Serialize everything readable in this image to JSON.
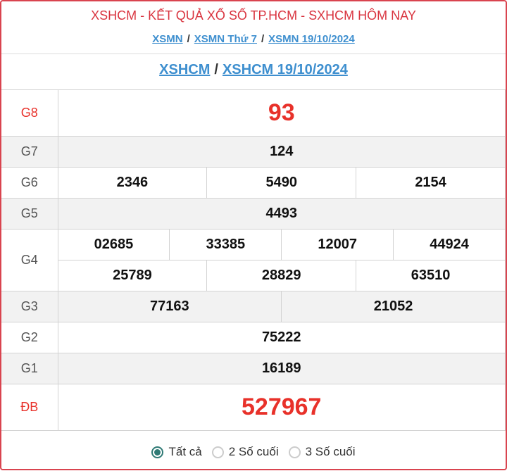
{
  "header": {
    "title": "XSHCM - KẾT QUẢ XỔ SỐ TP.HCM - SXHCM HÔM NAY",
    "breadcrumb": [
      "XSMN",
      "XSMN Thứ 7",
      "XSMN 19/10/2024"
    ],
    "subtitle_links": [
      "XSHCM",
      "XSHCM 19/10/2024"
    ],
    "separator": "/"
  },
  "prizes": {
    "g8": {
      "label": "G8",
      "numbers": [
        "93"
      ]
    },
    "g7": {
      "label": "G7",
      "numbers": [
        "124"
      ]
    },
    "g6": {
      "label": "G6",
      "numbers": [
        "2346",
        "5490",
        "2154"
      ]
    },
    "g5": {
      "label": "G5",
      "numbers": [
        "4493"
      ]
    },
    "g4": {
      "label": "G4",
      "numbers": [
        "02685",
        "33385",
        "12007",
        "44924",
        "25789",
        "28829",
        "63510"
      ]
    },
    "g3": {
      "label": "G3",
      "numbers": [
        "77163",
        "21052"
      ]
    },
    "g2": {
      "label": "G2",
      "numbers": [
        "75222"
      ]
    },
    "g1": {
      "label": "G1",
      "numbers": [
        "16189"
      ]
    },
    "db": {
      "label": "ĐB",
      "numbers": [
        "527967"
      ]
    }
  },
  "footer": {
    "options": [
      "Tất cả",
      "2 Số cuối",
      "3 Số cuối"
    ],
    "selected": "Tất cả"
  },
  "colors": {
    "accent_red": "#e8312a",
    "link": "#3e8fcf",
    "radio": "#2f7a75"
  }
}
